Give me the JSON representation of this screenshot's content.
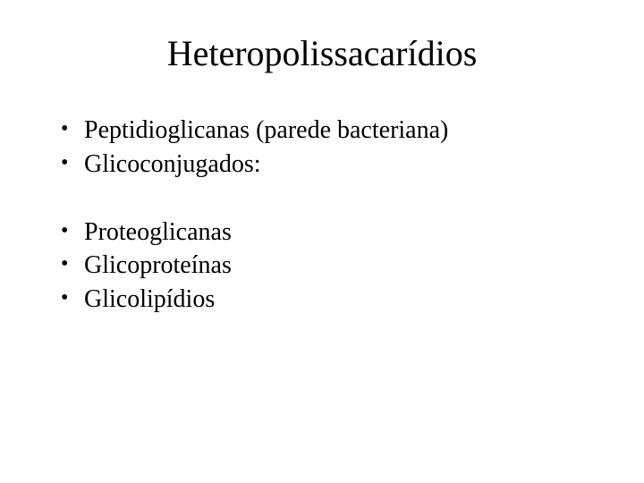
{
  "slide": {
    "title": "Heteropolissacarídios",
    "group1": [
      "Peptidioglicanas (parede bacteriana)",
      "Glicoconjugados:"
    ],
    "group2": [
      "Proteoglicanas",
      "Glicoproteínas",
      "Glicolipídios"
    ]
  },
  "style": {
    "background_color": "#ffffff",
    "text_color": "#000000",
    "title_fontsize": 40,
    "bullet_fontsize": 28,
    "font_family": "Times New Roman"
  }
}
